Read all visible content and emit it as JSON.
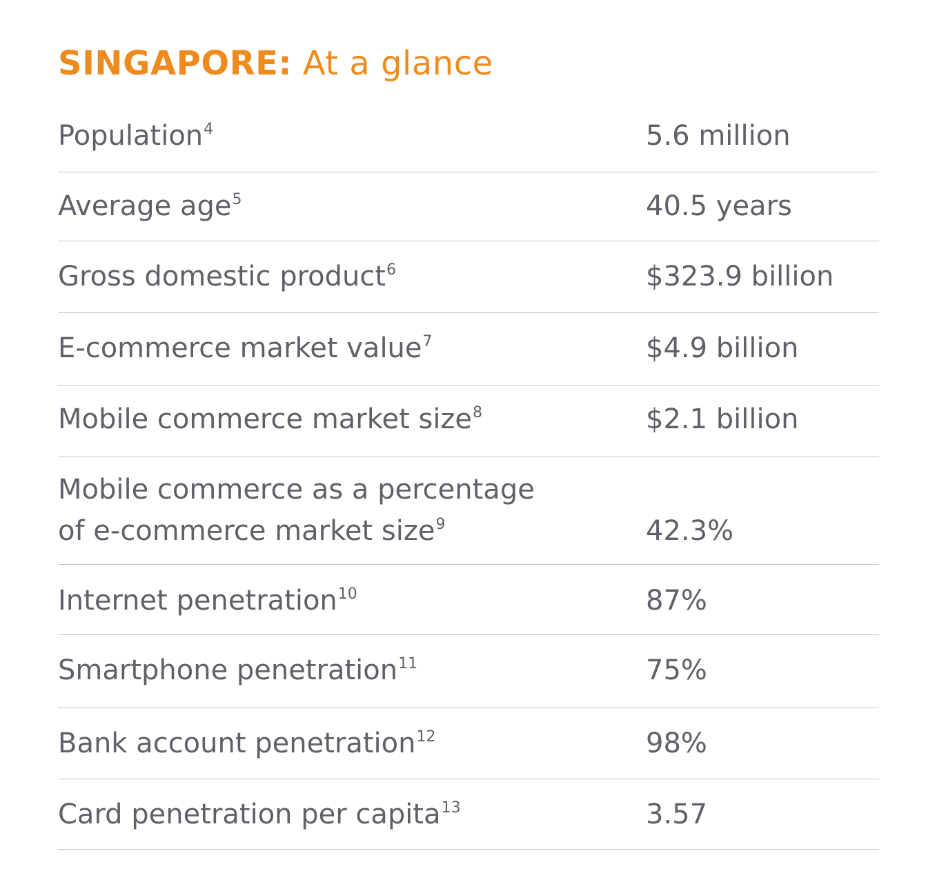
{
  "title": {
    "country": "SINGAPORE:",
    "subtitle": "At a glance"
  },
  "rows": [
    {
      "label": "Population",
      "note": "4",
      "value": "5.6 million"
    },
    {
      "label": "Average age",
      "note": "5",
      "value": "40.5 years"
    },
    {
      "label": "Gross domestic product",
      "note": "6",
      "value": "$323.9 billion"
    },
    {
      "label": "E-commerce market value",
      "note": "7",
      "value": "$4.9 billion"
    },
    {
      "label": "Mobile commerce market size",
      "note": "8",
      "value": "$2.1 billion"
    },
    {
      "label_line1": "Mobile commerce as a percentage",
      "label": "of e-commerce market size",
      "note": "9",
      "value": "42.3%"
    },
    {
      "label": "Internet penetration",
      "note": "10",
      "value": "87%"
    },
    {
      "label": "Smartphone penetration",
      "note": "11",
      "value": "75%"
    },
    {
      "label": "Bank account penetration",
      "note": "12",
      "value": "98%"
    },
    {
      "label": "Card penetration per capita",
      "note": "13",
      "value": "3.57"
    }
  ],
  "colors": {
    "title": "#ee8b1f",
    "text": "#5f6169",
    "divider": "#b8c6d2"
  }
}
